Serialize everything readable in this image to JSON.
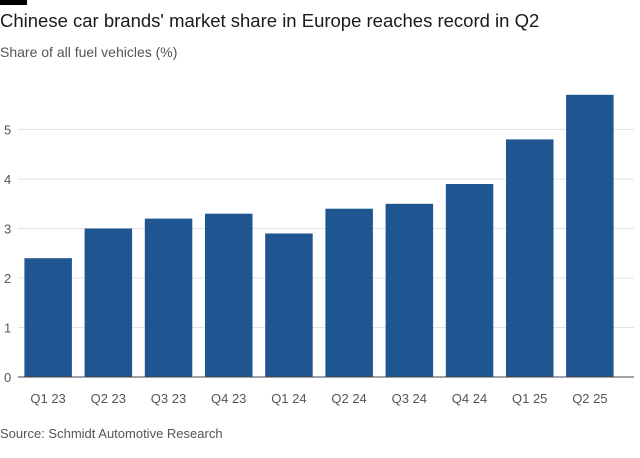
{
  "chart_data": {
    "type": "bar",
    "title": "Chinese car brands' market share in Europe reaches record in Q2",
    "subtitle": "Share of all fuel vehicles (%)",
    "categories": [
      "Q1 23",
      "Q2 23",
      "Q3 23",
      "Q4 23",
      "Q1 24",
      "Q2 24",
      "Q3 24",
      "Q4 24",
      "Q1 25",
      "Q2 25"
    ],
    "values": [
      2.4,
      3.0,
      3.2,
      3.3,
      2.9,
      3.4,
      3.5,
      3.9,
      4.8,
      5.7
    ],
    "yticks": [
      0,
      1,
      2,
      3,
      4,
      5
    ],
    "ylim": [
      0,
      5.9
    ],
    "xlabel": "",
    "ylabel": "",
    "grid": true,
    "bar_color": "#1f5590",
    "grid_color": "#e3e3e3",
    "axis_color": "#555555",
    "source": "Source: Schmidt Automotive Research"
  }
}
